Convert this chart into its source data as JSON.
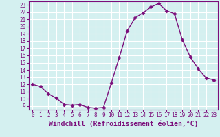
{
  "x": [
    0,
    1,
    2,
    3,
    4,
    5,
    6,
    7,
    8,
    9,
    10,
    11,
    12,
    13,
    14,
    15,
    16,
    17,
    18,
    19,
    20,
    21,
    22,
    23
  ],
  "y": [
    12,
    11.7,
    10.7,
    10.1,
    9.2,
    9.1,
    9.2,
    8.8,
    8.7,
    8.8,
    12.2,
    15.7,
    19.4,
    21.2,
    21.9,
    22.7,
    23.2,
    22.2,
    21.8,
    18.2,
    15.8,
    14.2,
    12.9,
    12.6
  ],
  "line_color": "#7b0e7b",
  "marker": "D",
  "markersize": 2.5,
  "linewidth": 1.0,
  "xlabel": "Windchill (Refroidissement éolien,°C)",
  "xlabel_fontsize": 7,
  "xlim": [
    -0.5,
    23.5
  ],
  "ylim": [
    8.5,
    23.5
  ],
  "yticks": [
    9,
    10,
    11,
    12,
    13,
    14,
    15,
    16,
    17,
    18,
    19,
    20,
    21,
    22,
    23
  ],
  "xticks": [
    0,
    1,
    2,
    3,
    4,
    5,
    6,
    7,
    8,
    9,
    10,
    11,
    12,
    13,
    14,
    15,
    16,
    17,
    18,
    19,
    20,
    21,
    22,
    23
  ],
  "bg_color": "#d4f0f0",
  "grid_color": "#ffffff",
  "tick_fontsize": 5.5,
  "xlabel_fontweight": "bold",
  "tick_color": "#7b0e7b",
  "spine_color": "#7b0e7b"
}
